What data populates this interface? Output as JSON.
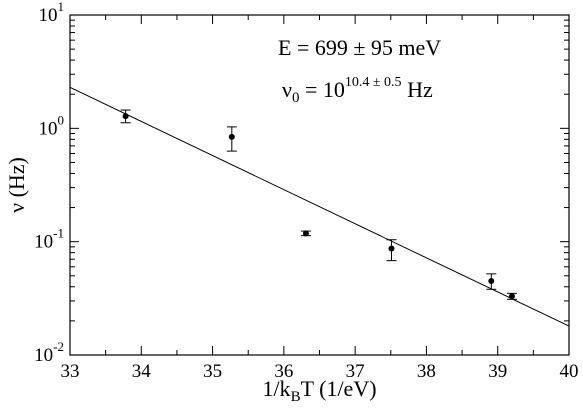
{
  "chart_data": {
    "type": "scatter",
    "title": "",
    "xlabel": "1/k_B T (1/eV)",
    "xlabel_parts": {
      "pre": "1/k",
      "sub": "B",
      "post": "T (1/eV)"
    },
    "ylabel": "ν (Hz)",
    "xlim": [
      33,
      40
    ],
    "ylim": [
      0.01,
      10
    ],
    "yscale": "log",
    "grid": false,
    "x_ticks": [
      "33",
      "34",
      "35",
      "36",
      "37",
      "38",
      "39",
      "40"
    ],
    "y_ticks": [
      {
        "base": "10",
        "exp": "-2",
        "value": 0.01
      },
      {
        "base": "10",
        "exp": "-1",
        "value": 0.1
      },
      {
        "base": "10",
        "exp": "0",
        "value": 1
      },
      {
        "base": "10",
        "exp": "1",
        "value": 10
      }
    ],
    "series": [
      {
        "type": "scatter_errorbar",
        "points": [
          {
            "x": 33.78,
            "y": 1.28,
            "ylow": 1.12,
            "yhigh": 1.45
          },
          {
            "x": 35.27,
            "y": 0.84,
            "ylow": 0.63,
            "yhigh": 1.03
          },
          {
            "x": 36.31,
            "y": 0.118,
            "ylow": 0.113,
            "yhigh": 0.124
          },
          {
            "x": 37.51,
            "y": 0.087,
            "ylow": 0.068,
            "yhigh": 0.104
          },
          {
            "x": 38.91,
            "y": 0.045,
            "ylow": 0.038,
            "yhigh": 0.052
          },
          {
            "x": 39.2,
            "y": 0.033,
            "ylow": 0.031,
            "yhigh": 0.035
          }
        ]
      },
      {
        "type": "line",
        "points": [
          {
            "x": 33,
            "y": 2.3
          },
          {
            "x": 40,
            "y": 0.018
          }
        ]
      }
    ],
    "annotations": {
      "energy": "E = 699 ± 95 meV",
      "nu0_prefix": "ν",
      "nu0_sub": "0",
      "nu0_eq": " = 10",
      "nu0_exp": "10.4 ± 0.5",
      "nu0_unit": " Hz"
    }
  }
}
